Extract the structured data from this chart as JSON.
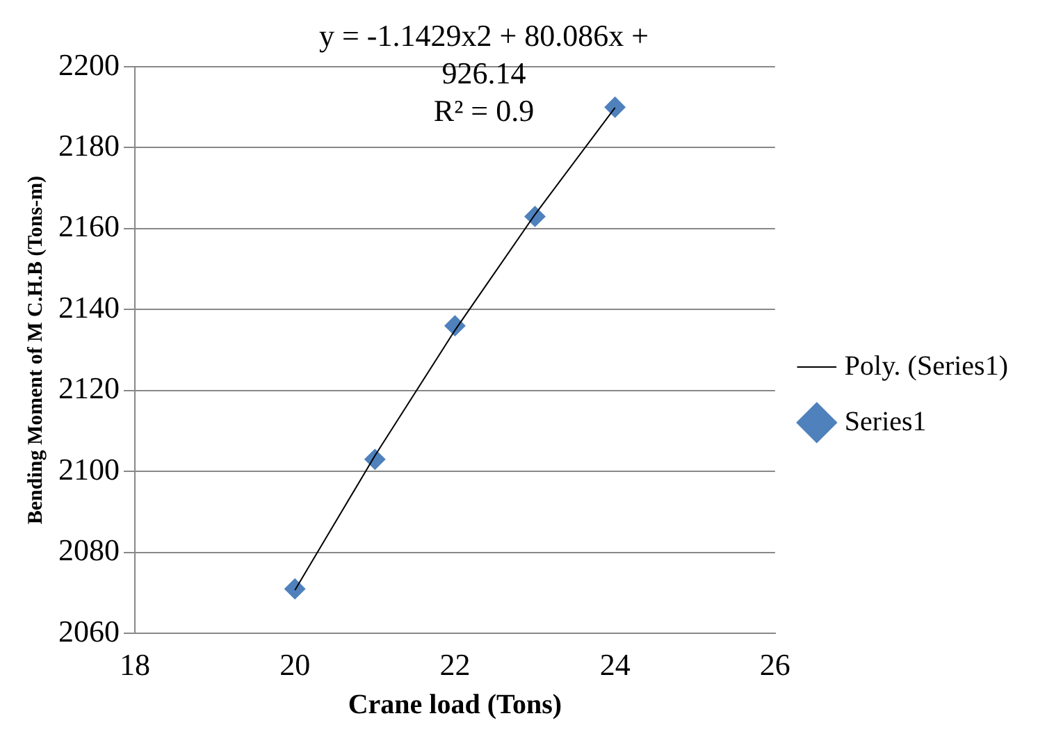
{
  "chart_data": {
    "type": "scatter",
    "xlabel": "Crane load (Tons)",
    "ylabel": "Bending Moment of M C.H.B (Tons-m)",
    "xlim": [
      18,
      26
    ],
    "xticks": [
      18,
      20,
      22,
      24,
      26
    ],
    "ylim": [
      2060,
      2200
    ],
    "yticks": [
      2060,
      2080,
      2100,
      2120,
      2140,
      2160,
      2180,
      2200
    ],
    "grid": "y",
    "legend": "right",
    "annotations": [
      "y = -1.1429x2 + 80.086x + 926.14",
      "R² = 0.9"
    ],
    "series": [
      {
        "name": "Series1",
        "type": "scatter",
        "color": "#4f81bd",
        "marker": "diamond",
        "x": [
          20,
          21,
          22,
          23,
          24
        ],
        "values": [
          2071,
          2103,
          2136,
          2163,
          2190
        ]
      },
      {
        "name": "Poly. (Series1)",
        "type": "line",
        "color": "#000000",
        "marker": "none",
        "x": [
          20,
          21,
          22,
          23,
          24
        ],
        "values": [
          2070.7,
          2103.9,
          2134.9,
          2163.5,
          2189.9
        ]
      }
    ]
  }
}
